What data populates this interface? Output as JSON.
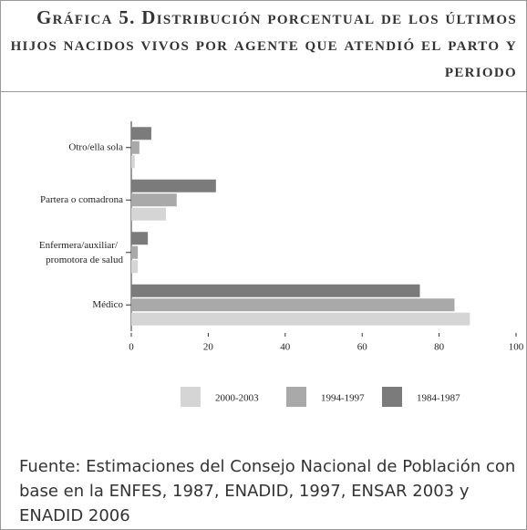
{
  "chart_data": {
    "type": "barh",
    "title": "Gráfica 5. Distribución porcentual de los últimos hijos nacidos vivos por agente que atendió el parto y periodo",
    "categories": [
      "Otro/ella sola",
      "Partera o comadrona",
      "Enfermera/auxiliar/ promotora de salud",
      "Médico"
    ],
    "series": [
      {
        "name": "1984-1987",
        "color": "#7b7b7c",
        "values": [
          5.2,
          22,
          4.3,
          75
        ]
      },
      {
        "name": "1994-1997",
        "color": "#a9a9aa",
        "values": [
          2.1,
          11.8,
          1.7,
          84
        ]
      },
      {
        "name": "2000-2003",
        "color": "#d5d5d5",
        "values": [
          0.9,
          9,
          1.7,
          88
        ]
      }
    ],
    "legend_order": [
      "2000-2003",
      "1994-1997",
      "1984-1987"
    ],
    "xlim": [
      0,
      100
    ],
    "xticks": [
      0,
      20,
      40,
      60,
      80,
      100
    ],
    "source": "Fuente: Estimaciones del Consejo Nacional de Población con base en la ENFES, 1987, ENADID, 1997, ENSAR 2003 y ENADID 2006"
  }
}
